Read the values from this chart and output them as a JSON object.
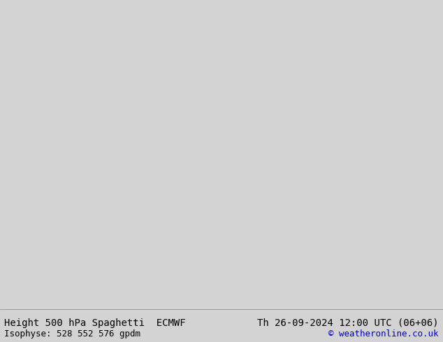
{
  "title_left": "Height 500 hPa Spaghetti  ECMWF",
  "title_right": "Th 26-09-2024 12:00 UTC (06+06)",
  "subtitle_left": "Isophyse: 528 552 576 gpdm",
  "subtitle_right": "© weatheronline.co.uk",
  "background_color": "#d3d3d3",
  "land_color": "#90ee90",
  "ocean_color": "#d3d3d3",
  "lake_color": "#d3d3d3",
  "text_color": "#000000",
  "copyright_color": "#0000cc",
  "footer_bg": "#e8e8e8",
  "map_extent": [
    -170,
    -50,
    10,
    80
  ],
  "contour_colors": [
    "#ff00ff",
    "#ff0000",
    "#ffff00",
    "#00ffff",
    "#0000ff",
    "#00ff00",
    "#ff8800",
    "#8800ff"
  ],
  "contour_levels": [
    528,
    552,
    576
  ],
  "font_size_title": 10,
  "font_size_subtitle": 9,
  "dpi": 100,
  "fig_width": 6.34,
  "fig_height": 4.9
}
